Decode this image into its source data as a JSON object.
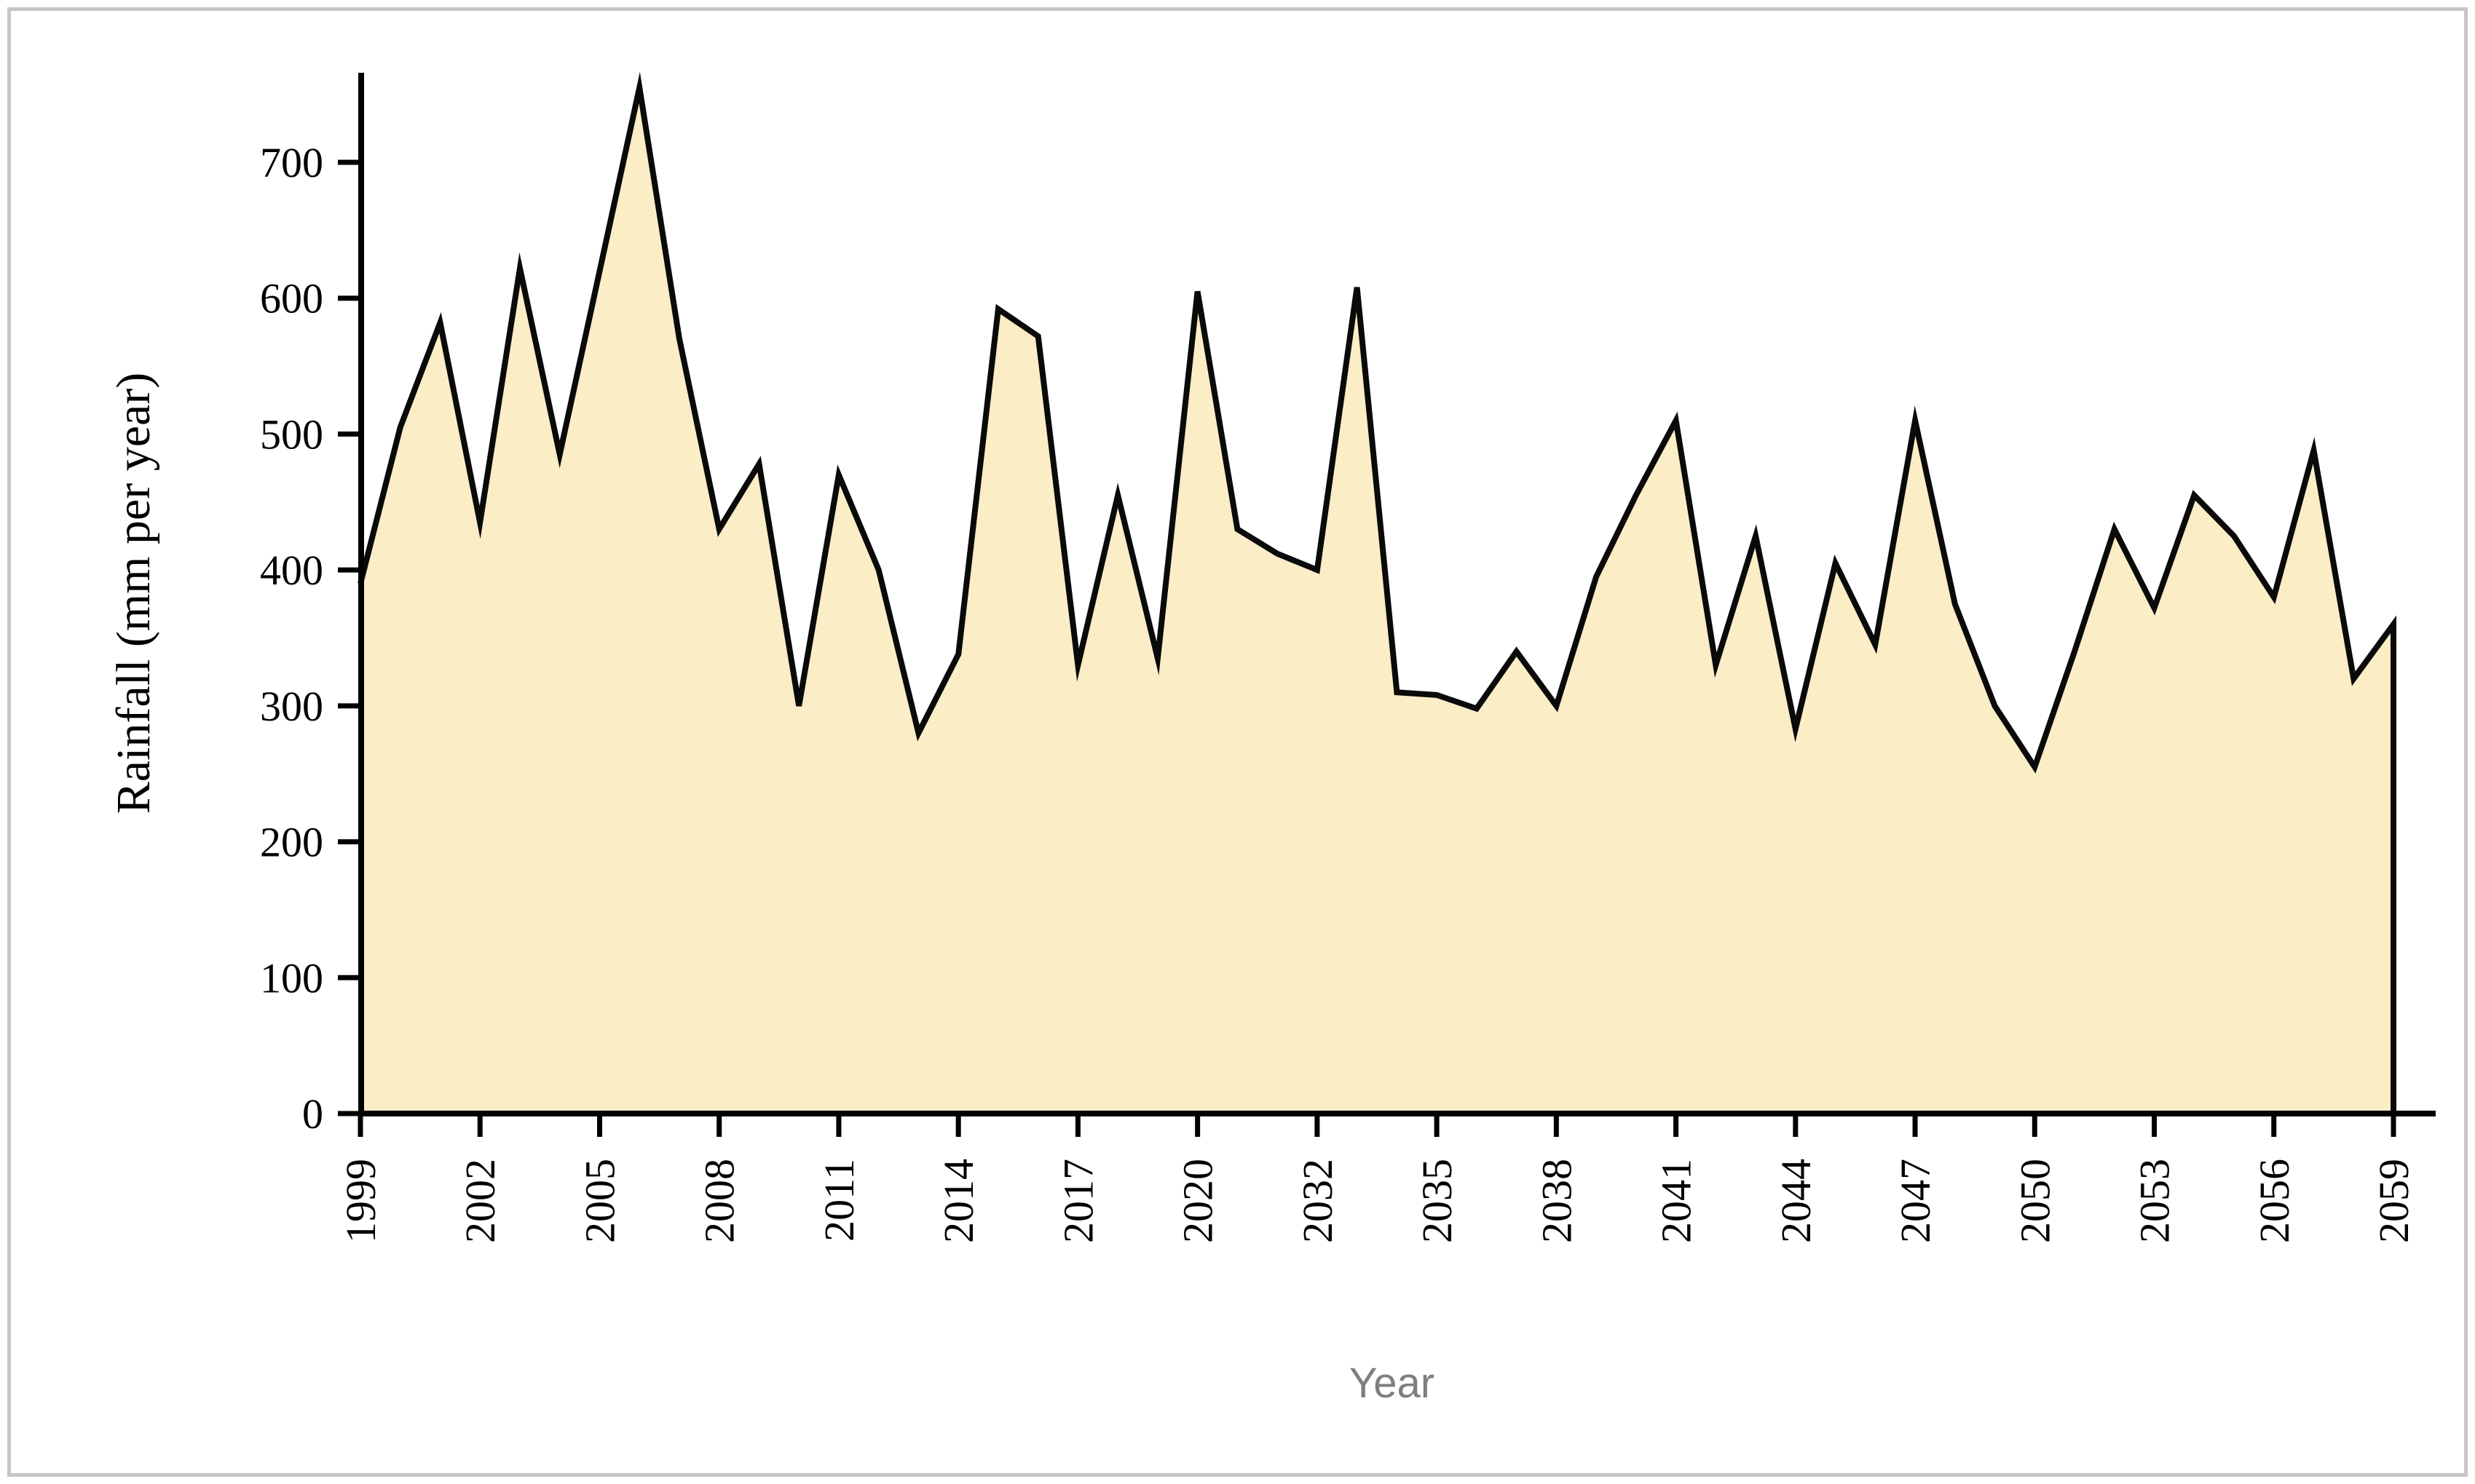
{
  "chart_data": {
    "type": "area",
    "title": "",
    "xlabel": "Year",
    "ylabel": "Rainfall (mm per year)",
    "ylim": [
      0,
      700
    ],
    "y_ticks": [
      0,
      100,
      200,
      300,
      400,
      500,
      600,
      700
    ],
    "x_tick_labels": [
      "1999",
      "2002",
      "2005",
      "2008",
      "2011",
      "2014",
      "2017",
      "2020",
      "2032",
      "2035",
      "2038",
      "2041",
      "2044",
      "2047",
      "2050",
      "2053",
      "2056",
      "2059"
    ],
    "x_tick_every": 3,
    "grid": false,
    "legend": "none",
    "x": [
      1999,
      2000,
      2001,
      2002,
      2003,
      2004,
      2005,
      2006,
      2007,
      2008,
      2009,
      2010,
      2011,
      2012,
      2013,
      2014,
      2015,
      2016,
      2017,
      2018,
      2019,
      2020,
      2030,
      2031,
      2032,
      2033,
      2034,
      2035,
      2036,
      2037,
      2038,
      2039,
      2040,
      2041,
      2042,
      2043,
      2044,
      2045,
      2046,
      2047,
      2048,
      2049,
      2050,
      2051,
      2052,
      2053,
      2054,
      2055,
      2056,
      2057,
      2058,
      2059
    ],
    "values": [
      390,
      505,
      582,
      435,
      622,
      485,
      620,
      755,
      570,
      430,
      478,
      300,
      470,
      400,
      280,
      338,
      592,
      572,
      330,
      455,
      335,
      605,
      430,
      412,
      400,
      608,
      310,
      308,
      298,
      340,
      300,
      395,
      455,
      510,
      330,
      425,
      283,
      405,
      345,
      510,
      375,
      300,
      255,
      340,
      430,
      372,
      455,
      425,
      380,
      488,
      320,
      360
    ],
    "colors": {
      "area_fill": "#FBEDC5",
      "series_line": "#0a0a0a",
      "axis": "#000000",
      "tick_label": "#000000",
      "ylabel_color": "#000000",
      "xlabel_color": "#7f7f7f",
      "figure_border": "#c6c6c6",
      "background": "#ffffff"
    }
  }
}
